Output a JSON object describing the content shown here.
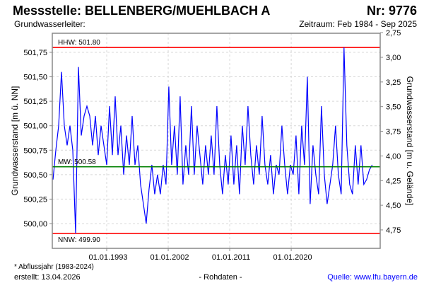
{
  "header": {
    "title": "Messstelle: BELLENBERG/MUEHLBACH A",
    "number": "Nr: 9776",
    "aquifer": "Grundwasserleiter:",
    "period": "Zeitraum: Feb 1984 - Sep 2025"
  },
  "footer": {
    "note": "* Abflussjahr (1983-2024)",
    "created": "erstellt:  13.04.2026",
    "datatype": "- Rohdaten -",
    "source": "Quelle: www.lfu.bayern.de"
  },
  "colors": {
    "series": "#0000ff",
    "extreme": "#ff0000",
    "mean": "#008000",
    "source": "#0000ff"
  },
  "chart_data": {
    "type": "line",
    "ylabel": "Grundwasserstand [m ü. NN]",
    "ylabel_right": "Grundwasserstand [m u. Gelände]",
    "ylim": [
      499.8,
      502.0
    ],
    "yticks": [
      500.0,
      500.25,
      500.5,
      500.75,
      501.0,
      501.25,
      501.5,
      501.75
    ],
    "ytick_labels": [
      "500,00",
      "500,25",
      "500,50",
      "500,75",
      "501,00",
      "501,25",
      "501,50",
      "501,75"
    ],
    "yticks_right": [
      2.75,
      3.0,
      3.25,
      3.5,
      3.75,
      4.0,
      4.25,
      4.5,
      4.75
    ],
    "ytick_labels_right": [
      "2,75",
      "3,00",
      "3,25",
      "3,50",
      "3,75",
      "4,00",
      "4,25",
      "4,50",
      "4,75"
    ],
    "ground_level": 504.7,
    "xlim": [
      1985.04,
      2033.0
    ],
    "xticks": [
      1993,
      2002,
      2011,
      2020
    ],
    "xtick_labels": [
      "01.01.1993",
      "01.01.2002",
      "01.01.2011",
      "01.01.2020"
    ],
    "grid": true,
    "reference_lines": [
      {
        "name": "HHW",
        "label": "HHW: 501.80",
        "value": 501.8
      },
      {
        "name": "MW",
        "label": "MW: 500.58",
        "value": 500.58
      },
      {
        "name": "NNW",
        "label": "NNW: 499.90",
        "value": 499.9
      }
    ],
    "series": [
      {
        "name": "Grundwasserstand",
        "x_start": 1985.14,
        "x_step": 0.4135,
        "values": [
          500.45,
          500.75,
          501.0,
          501.55,
          501.0,
          500.8,
          501.0,
          500.75,
          499.9,
          501.6,
          500.9,
          501.1,
          501.2,
          501.1,
          500.8,
          501.1,
          500.7,
          501.0,
          500.8,
          500.6,
          501.2,
          500.7,
          501.3,
          500.7,
          501.0,
          500.5,
          500.9,
          500.6,
          501.1,
          500.6,
          500.8,
          500.4,
          500.2,
          500.0,
          500.35,
          500.6,
          500.3,
          500.5,
          500.3,
          500.6,
          500.4,
          501.4,
          500.6,
          501.0,
          500.5,
          501.3,
          500.4,
          500.8,
          500.5,
          501.2,
          500.5,
          501.0,
          500.7,
          500.4,
          500.8,
          500.5,
          500.9,
          500.5,
          501.2,
          500.6,
          500.3,
          500.7,
          500.4,
          500.9,
          500.4,
          500.8,
          500.3,
          501.0,
          500.6,
          501.2,
          500.7,
          500.4,
          500.8,
          500.5,
          501.1,
          500.6,
          500.4,
          500.7,
          500.3,
          500.6,
          500.5,
          501.0,
          500.6,
          500.3,
          500.6,
          500.5,
          500.9,
          500.3,
          501.0,
          500.6,
          501.5,
          500.2,
          500.8,
          500.5,
          500.3,
          501.2,
          500.5,
          500.2,
          500.4,
          500.6,
          501.0,
          500.5,
          500.3,
          501.8,
          500.8,
          500.4,
          500.3,
          500.8,
          500.4,
          500.8,
          500.4,
          500.45,
          500.55,
          500.6
        ]
      }
    ]
  }
}
